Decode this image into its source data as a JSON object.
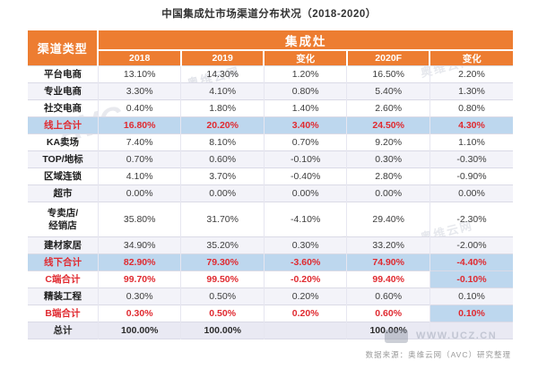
{
  "page": {
    "title": "中国集成灶市场渠道分布状况（2018-2020）",
    "source_note": "数据来源：奥维云网（AVC）研究整理"
  },
  "watermarks": {
    "brand_cn": "奥维云网",
    "brand_en": "AVC",
    "site": "WWW.UCZ.CN"
  },
  "colors": {
    "header_bg": "#ED7D31",
    "highlight_row_bg": "#BDD7EE",
    "emphasis_text": "#E02A30",
    "total_row_bg": "#E9E9F3"
  },
  "chart_data": {
    "type": "table",
    "title": "中国集成灶市场渠道分布状况（2018-2020）",
    "corner_header": "渠道类型",
    "group_header": "集成灶",
    "columns": [
      "2018",
      "2019",
      "变化",
      "2020F",
      "变化"
    ],
    "rows": [
      {
        "label": "平台电商",
        "style": "normal",
        "values": [
          "13.10%",
          "14.30%",
          "1.20%",
          "16.50%",
          "2.20%"
        ]
      },
      {
        "label": "专业电商",
        "style": "shaded",
        "values": [
          "3.30%",
          "4.10%",
          "0.80%",
          "5.40%",
          "1.30%"
        ]
      },
      {
        "label": "社交电商",
        "style": "normal",
        "values": [
          "0.40%",
          "1.80%",
          "1.40%",
          "2.60%",
          "0.80%"
        ]
      },
      {
        "label": "线上合计",
        "style": "blue-subtotal",
        "values": [
          "16.80%",
          "20.20%",
          "3.40%",
          "24.50%",
          "4.30%"
        ]
      },
      {
        "label": "KA卖场",
        "style": "normal",
        "values": [
          "7.40%",
          "8.10%",
          "0.70%",
          "9.20%",
          "1.10%"
        ]
      },
      {
        "label": "TOP/地标",
        "style": "shaded",
        "values": [
          "0.70%",
          "0.60%",
          "-0.10%",
          "0.30%",
          "-0.30%"
        ]
      },
      {
        "label": "区域连锁",
        "style": "normal",
        "values": [
          "4.10%",
          "3.70%",
          "-0.40%",
          "2.80%",
          "-0.90%"
        ]
      },
      {
        "label": "超市",
        "style": "shaded",
        "values": [
          "0.00%",
          "0.00%",
          "0.00%",
          "0.00%",
          "0.00%"
        ]
      },
      {
        "label": "专卖店/\n经销店",
        "style": "normal",
        "tall": true,
        "values": [
          "35.80%",
          "31.70%",
          "-4.10%",
          "29.40%",
          "-2.30%"
        ]
      },
      {
        "label": "建材家居",
        "style": "shaded",
        "values": [
          "34.90%",
          "35.20%",
          "0.30%",
          "33.20%",
          "-2.00%"
        ]
      },
      {
        "label": "线下合计",
        "style": "blue-subtotal",
        "values": [
          "82.90%",
          "79.30%",
          "-3.60%",
          "74.90%",
          "-4.40%"
        ]
      },
      {
        "label": "C端合计",
        "style": "red",
        "highlight_cells": [
          4
        ],
        "values": [
          "99.70%",
          "99.50%",
          "-0.20%",
          "99.40%",
          "-0.10%"
        ]
      },
      {
        "label": "精装工程",
        "style": "shaded",
        "values": [
          "0.30%",
          "0.50%",
          "0.20%",
          "0.60%",
          "0.10%"
        ]
      },
      {
        "label": "B端合计",
        "style": "red",
        "highlight_cells": [
          4
        ],
        "values": [
          "0.30%",
          "0.50%",
          "0.20%",
          "0.60%",
          "0.10%"
        ]
      },
      {
        "label": "总计",
        "style": "grand",
        "values": [
          "100.00%",
          "100.00%",
          "",
          "100.00%",
          ""
        ]
      }
    ]
  }
}
